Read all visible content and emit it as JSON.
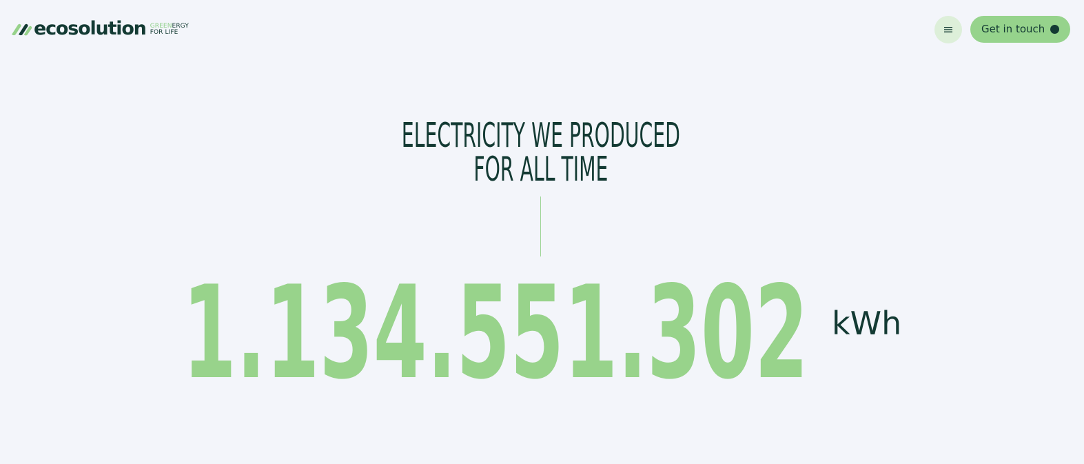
{
  "header": {
    "logo": {
      "wordmark": "ecosolution",
      "tagline_green": "GREEN",
      "tagline_dark": "ERGY",
      "tagline_line2": "FOR LIFE"
    },
    "menu_icon": "menu-icon",
    "cta_label": "Get in touch",
    "cta_icon": "dot-icon"
  },
  "hero": {
    "headline_line1": "ELECTRICITY WE PRODUCED",
    "headline_line2": "FOR ALL TIME",
    "counter_value": "1.134.551.302",
    "unit": "kWh"
  },
  "colors": {
    "background": "#f3f5fa",
    "dark": "#133a33",
    "accent_green": "#97d28b",
    "menu_bg": "#ddefd9"
  }
}
